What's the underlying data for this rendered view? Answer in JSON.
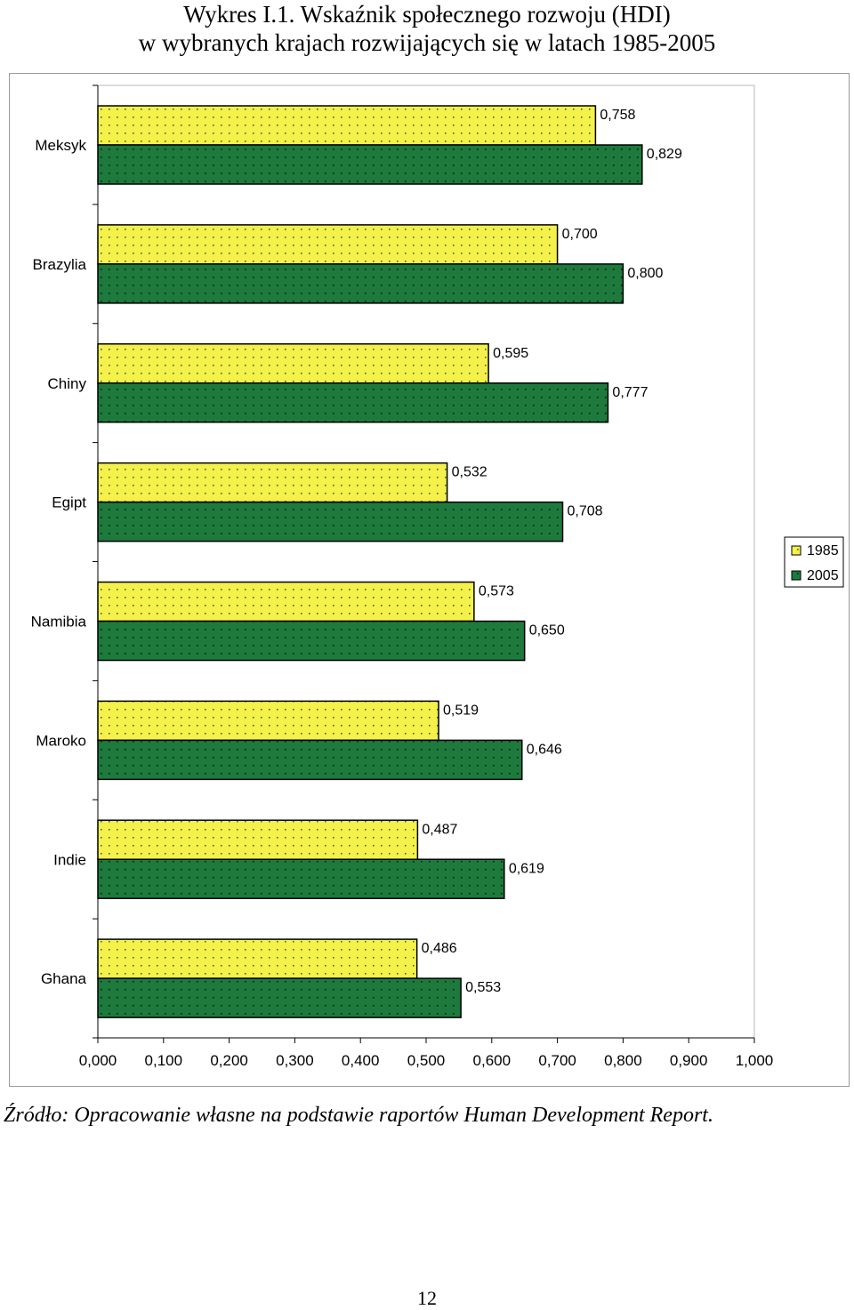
{
  "title": {
    "line1": "Wykres I.1. Wskaźnik społecznego rozwoju (HDI)",
    "line2": "w wybranych krajach rozwijających się w latach 1985-2005"
  },
  "source": "Źródło: Opracowanie własne na podstawie raportów Human Development Report.",
  "page_number": "12",
  "chart_data": {
    "type": "bar",
    "orientation": "horizontal",
    "categories": [
      "Meksyk",
      "Brazylia",
      "Chiny",
      "Egipt",
      "Namibia",
      "Maroko",
      "Indie",
      "Ghana"
    ],
    "series": [
      {
        "name": "1985",
        "values": [
          0.758,
          0.7,
          0.595,
          0.532,
          0.573,
          0.519,
          0.487,
          0.486
        ],
        "labels": [
          "0,758",
          "0,700",
          "0,595",
          "0,532",
          "0,573",
          "0,519",
          "0,487",
          "0,486"
        ],
        "color": "#f5f04a",
        "dot_color": "#2a6e3a"
      },
      {
        "name": "2005",
        "values": [
          0.829,
          0.8,
          0.777,
          0.708,
          0.65,
          0.646,
          0.619,
          0.553
        ],
        "labels": [
          "0,829",
          "0,800",
          "0,777",
          "0,708",
          "0,650",
          "0,646",
          "0,619",
          "0,553"
        ],
        "color": "#1d7a3c",
        "dot_color": "#0b1f0f"
      }
    ],
    "xlim": [
      0,
      1
    ],
    "x_ticks": [
      "0,000",
      "0,100",
      "0,200",
      "0,300",
      "0,400",
      "0,500",
      "0,600",
      "0,700",
      "0,800",
      "0,900",
      "1,000"
    ],
    "legend_position": "right",
    "grid": false
  }
}
